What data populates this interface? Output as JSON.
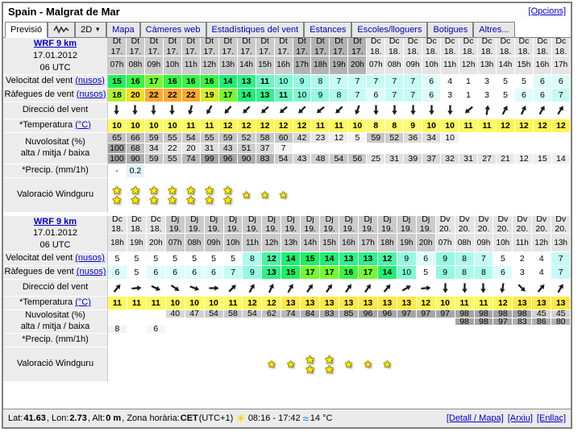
{
  "window": {
    "title": "Spain - Malgrat de Mar",
    "options_link": "[Opcions]"
  },
  "tabs": [
    {
      "label": "Previsió",
      "kind": "active"
    },
    {
      "label": "",
      "kind": "graph"
    },
    {
      "label": "2D",
      "kind": "dropdown"
    },
    {
      "label": "Mapa",
      "kind": "link"
    },
    {
      "label": "Càmeres web",
      "kind": "link"
    },
    {
      "label": "Estadístiques del vent",
      "kind": "link"
    },
    {
      "label": "Estances",
      "kind": "link"
    },
    {
      "label": "Escoles/lloguers",
      "kind": "link"
    },
    {
      "label": "Botigues",
      "kind": "link"
    },
    {
      "label": "Altres...",
      "kind": "link"
    }
  ],
  "row_labels": {
    "wind": {
      "text": "Velocitat del vent",
      "link": "(nusos)"
    },
    "gust": {
      "text": "Ràfegues de vent",
      "link": "(nusos)"
    },
    "dir": {
      "text": "Direcció del vent"
    },
    "temp": {
      "text": "*Temperatura",
      "link": "(°C)"
    },
    "clouds_line1": "Nuvolositat (%)",
    "clouds_line2": "alta / mitja / baixa",
    "precip": {
      "text": "*Precip. (mm/1h)"
    },
    "rating": {
      "text": "Valoració Windguru"
    }
  },
  "tables": [
    {
      "model": "WRF 9 km",
      "date": "17.01.2012",
      "run": "06 UTC",
      "columns": [
        {
          "d": "Dt",
          "n": "17.",
          "h": "07h",
          "s": "d1"
        },
        {
          "d": "Dt",
          "n": "17.",
          "h": "08h",
          "s": "d1"
        },
        {
          "d": "Dt",
          "n": "17.",
          "h": "09h",
          "s": "d1"
        },
        {
          "d": "Dt",
          "n": "17.",
          "h": "10h",
          "s": "d1"
        },
        {
          "d": "Dt",
          "n": "17.",
          "h": "11h",
          "s": "d1"
        },
        {
          "d": "Dt",
          "n": "17.",
          "h": "12h",
          "s": "d1"
        },
        {
          "d": "Dt",
          "n": "17.",
          "h": "13h",
          "s": "d1"
        },
        {
          "d": "Dt",
          "n": "17.",
          "h": "14h",
          "s": "d1"
        },
        {
          "d": "Dt",
          "n": "17.",
          "h": "15h",
          "s": "d1"
        },
        {
          "d": "Dt",
          "n": "17.",
          "h": "16h",
          "s": "d1"
        },
        {
          "d": "Dt",
          "n": "17.",
          "h": "17h",
          "s": "n1"
        },
        {
          "d": "Dt",
          "n": "17.",
          "h": "18h",
          "s": "n1"
        },
        {
          "d": "Dt",
          "n": "17.",
          "h": "19h",
          "s": "n1"
        },
        {
          "d": "Dt",
          "n": "17.",
          "h": "20h",
          "s": "n1"
        },
        {
          "d": "Dc",
          "n": "18.",
          "h": "07h",
          "s": "d2"
        },
        {
          "d": "Dc",
          "n": "18.",
          "h": "08h",
          "s": "d2"
        },
        {
          "d": "Dc",
          "n": "18.",
          "h": "09h",
          "s": "d2"
        },
        {
          "d": "Dc",
          "n": "18.",
          "h": "10h",
          "s": "d2"
        },
        {
          "d": "Dc",
          "n": "18.",
          "h": "11h",
          "s": "d2"
        },
        {
          "d": "Dc",
          "n": "18.",
          "h": "12h",
          "s": "d2"
        },
        {
          "d": "Dc",
          "n": "18.",
          "h": "13h",
          "s": "d2"
        },
        {
          "d": "Dc",
          "n": "18.",
          "h": "14h",
          "s": "d2"
        },
        {
          "d": "Dc",
          "n": "18.",
          "h": "15h",
          "s": "d2"
        },
        {
          "d": "Dc",
          "n": "18.",
          "h": "16h",
          "s": "d2"
        },
        {
          "d": "Dc",
          "n": "18.",
          "h": "17h",
          "s": "d2"
        }
      ],
      "wind": [
        15,
        16,
        17,
        16,
        16,
        16,
        14,
        13,
        11,
        10,
        9,
        8,
        7,
        7,
        7,
        7,
        7,
        6,
        4,
        1,
        3,
        5,
        5,
        6,
        6
      ],
      "gust": [
        18,
        20,
        22,
        22,
        22,
        19,
        17,
        14,
        13,
        11,
        10,
        9,
        8,
        7,
        6,
        7,
        7,
        6,
        3,
        1,
        3,
        5,
        6,
        6,
        7
      ],
      "dir": [
        180,
        180,
        180,
        180,
        195,
        210,
        220,
        225,
        228,
        230,
        225,
        230,
        225,
        200,
        180,
        180,
        180,
        180,
        180,
        230,
        8,
        28,
        25,
        30,
        32
      ],
      "temp": [
        10,
        10,
        10,
        10,
        11,
        11,
        12,
        12,
        12,
        12,
        12,
        11,
        11,
        10,
        8,
        8,
        9,
        10,
        10,
        11,
        11,
        12,
        12,
        12,
        12
      ],
      "cloud_high": [
        65,
        66,
        59,
        55,
        54,
        55,
        59,
        52,
        58,
        60,
        42,
        23,
        12,
        5,
        59,
        52,
        36,
        34,
        10,
        null,
        null,
        null,
        null,
        null,
        null
      ],
      "cloud_mid": [
        100,
        68,
        34,
        22,
        20,
        31,
        43,
        51,
        37,
        7,
        null,
        null,
        null,
        null,
        null,
        null,
        null,
        null,
        null,
        null,
        null,
        null,
        null,
        null,
        null
      ],
      "cloud_low": [
        100,
        90,
        59,
        55,
        74,
        99,
        96,
        90,
        83,
        54,
        43,
        48,
        54,
        56,
        25,
        31,
        39,
        37,
        32,
        31,
        27,
        21,
        12,
        15,
        14
      ],
      "precip": [
        "-",
        "0.2",
        "",
        "",
        "",
        "",
        "",
        "",
        "",
        "",
        "",
        "",
        "",
        "",
        "",
        "",
        "",
        "",
        "",
        "",
        "",
        "",
        "",
        "",
        ""
      ],
      "stars": [
        2,
        2,
        2,
        2,
        2,
        2,
        2,
        1,
        1,
        1,
        0,
        0,
        0,
        0,
        0,
        0,
        0,
        0,
        0,
        0,
        0,
        0,
        0,
        0,
        0
      ]
    },
    {
      "model": "WRF 9 km",
      "date": "17.01.2012",
      "run": "06 UTC",
      "columns": [
        {
          "d": "Dc",
          "n": "18.",
          "h": "18h",
          "s": "d2"
        },
        {
          "d": "Dc",
          "n": "18.",
          "h": "19h",
          "s": "d2"
        },
        {
          "d": "Dc",
          "n": "18.",
          "h": "20h",
          "s": "d2"
        },
        {
          "d": "Dj",
          "n": "19.",
          "h": "07h",
          "s": "d1"
        },
        {
          "d": "Dj",
          "n": "19.",
          "h": "08h",
          "s": "d1"
        },
        {
          "d": "Dj",
          "n": "19.",
          "h": "09h",
          "s": "d1"
        },
        {
          "d": "Dj",
          "n": "19.",
          "h": "10h",
          "s": "d1"
        },
        {
          "d": "Dj",
          "n": "19.",
          "h": "11h",
          "s": "d1"
        },
        {
          "d": "Dj",
          "n": "19.",
          "h": "12h",
          "s": "d1"
        },
        {
          "d": "Dj",
          "n": "19.",
          "h": "13h",
          "s": "d1"
        },
        {
          "d": "Dj",
          "n": "19.",
          "h": "14h",
          "s": "d1"
        },
        {
          "d": "Dj",
          "n": "19.",
          "h": "15h",
          "s": "d1"
        },
        {
          "d": "Dj",
          "n": "19.",
          "h": "16h",
          "s": "d1"
        },
        {
          "d": "Dj",
          "n": "19.",
          "h": "17h",
          "s": "d1"
        },
        {
          "d": "Dj",
          "n": "19.",
          "h": "18h",
          "s": "d1"
        },
        {
          "d": "Dj",
          "n": "19.",
          "h": "19h",
          "s": "d1"
        },
        {
          "d": "Dj",
          "n": "19.",
          "h": "20h",
          "s": "d1"
        },
        {
          "d": "Dv",
          "n": "20.",
          "h": "07h",
          "s": "d2"
        },
        {
          "d": "Dv",
          "n": "20.",
          "h": "08h",
          "s": "d2"
        },
        {
          "d": "Dv",
          "n": "20.",
          "h": "09h",
          "s": "d2"
        },
        {
          "d": "Dv",
          "n": "20.",
          "h": "10h",
          "s": "d2"
        },
        {
          "d": "Dv",
          "n": "20.",
          "h": "11h",
          "s": "d2"
        },
        {
          "d": "Dv",
          "n": "20.",
          "h": "12h",
          "s": "d2"
        },
        {
          "d": "Dv",
          "n": "20.",
          "h": "13h",
          "s": "d2"
        }
      ],
      "wind": [
        5,
        5,
        5,
        5,
        5,
        5,
        5,
        8,
        12,
        14,
        15,
        14,
        13,
        13,
        12,
        9,
        6,
        9,
        8,
        7,
        5,
        2,
        4,
        7
      ],
      "gust": [
        6,
        5,
        6,
        6,
        6,
        6,
        7,
        9,
        13,
        15,
        17,
        17,
        16,
        17,
        14,
        10,
        5,
        9,
        8,
        8,
        6,
        3,
        4,
        7
      ],
      "dir": [
        40,
        85,
        115,
        125,
        110,
        90,
        45,
        30,
        25,
        30,
        35,
        35,
        35,
        35,
        40,
        60,
        85,
        180,
        180,
        180,
        190,
        135,
        40,
        30
      ],
      "temp": [
        11,
        11,
        11,
        10,
        10,
        10,
        11,
        12,
        12,
        13,
        13,
        13,
        13,
        13,
        13,
        13,
        12,
        10,
        11,
        11,
        12,
        13,
        13,
        13
      ],
      "cloud_high": [
        null,
        null,
        null,
        40,
        47,
        54,
        58,
        54,
        62,
        74,
        84,
        83,
        85,
        96,
        96,
        97,
        97,
        97,
        98,
        98,
        98,
        98,
        45,
        45
      ],
      "cloud_mid": [
        null,
        null,
        null,
        null,
        null,
        null,
        null,
        null,
        null,
        null,
        null,
        null,
        null,
        null,
        null,
        null,
        null,
        null,
        98,
        98,
        97,
        83,
        86,
        80
      ],
      "cloud_low": [
        8,
        null,
        6,
        null,
        null,
        null,
        null,
        null,
        null,
        null,
        null,
        null,
        null,
        null,
        null,
        null,
        null,
        null,
        null,
        null,
        null,
        null,
        null,
        null
      ],
      "precip": [
        "",
        "",
        "",
        "",
        "",
        "",
        "",
        "",
        "",
        "",
        "",
        "",
        "",
        "",
        "",
        "",
        "",
        "",
        "",
        "",
        "",
        "",
        "",
        ""
      ],
      "stars": [
        0,
        0,
        0,
        0,
        0,
        0,
        0,
        0,
        1,
        1,
        2,
        2,
        1,
        1,
        1,
        0,
        0,
        0,
        0,
        0,
        0,
        0,
        0,
        0
      ]
    }
  ],
  "footer": {
    "segments": [
      {
        "t": "Lat: "
      },
      {
        "t": "41.63",
        "b": true
      },
      {
        "t": ", Lon: "
      },
      {
        "t": "2.73",
        "b": true
      },
      {
        "t": ", Alt: "
      },
      {
        "t": "0 m",
        "b": true
      },
      {
        "t": ", Zona horària: "
      },
      {
        "t": "CET",
        "b": true
      },
      {
        "t": " (UTC+1) "
      },
      {
        "icon": "sun-icon"
      },
      {
        "t": "08:16 - 17:42 "
      },
      {
        "icon": "waves-icon"
      },
      {
        "t": "14 °C"
      }
    ],
    "links": [
      "[Detall / Mapa]",
      "[Arxiu]",
      "[Enllaç]"
    ]
  }
}
